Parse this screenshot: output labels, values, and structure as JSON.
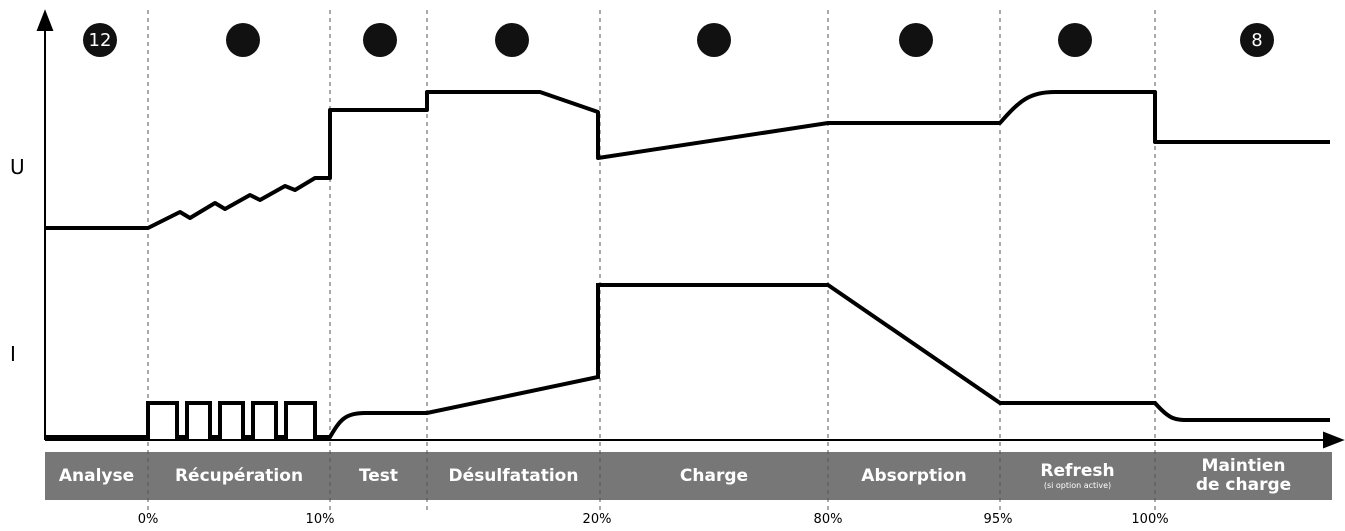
{
  "circles": [
    "12",
    "",
    "",
    "",
    "",
    "",
    "",
    "8"
  ],
  "axes": {
    "u": "U",
    "i": "I"
  },
  "stages": [
    {
      "label": "Analyse"
    },
    {
      "label": "Récupération"
    },
    {
      "label": "Test"
    },
    {
      "label": "Désulfatation"
    },
    {
      "label": "Charge"
    },
    {
      "label": "Absorption"
    },
    {
      "label": "Refresh",
      "note": "(si option active)"
    },
    {
      "label": "Maintien de charge"
    }
  ],
  "percentages": [
    "0%",
    "10%",
    "20%",
    "80%",
    "95%",
    "100%"
  ]
}
